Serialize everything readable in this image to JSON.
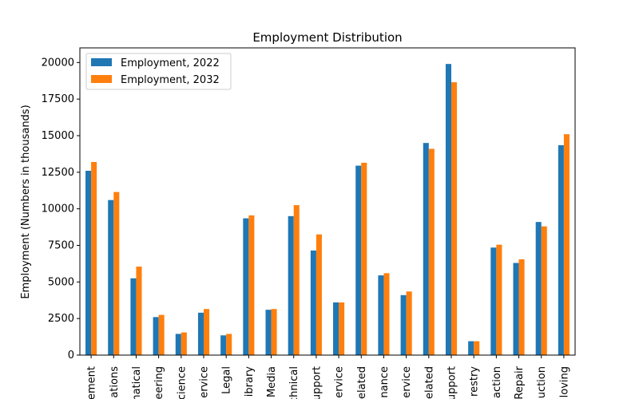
{
  "chart_data": {
    "type": "bar",
    "title": "Employment Distribution",
    "xlabel": "",
    "ylabel": "Employment (Numbers in thousands)",
    "ylim": [
      0,
      21000
    ],
    "yticks": [
      0,
      2500,
      5000,
      7500,
      10000,
      12500,
      15000,
      17500,
      20000
    ],
    "grid": false,
    "legend_position": "top-left",
    "categories": [
      "ement",
      "ations",
      "matical",
      "eering",
      "cience",
      "ervice",
      "Legal",
      "ibrary",
      "Media",
      "chnical",
      "upport",
      "ervice",
      "elated",
      "nance",
      "ervice",
      "elated",
      "upport",
      "restry",
      "action",
      "Repair",
      "uction",
      "loving"
    ],
    "series": [
      {
        "name": "Employment, 2022",
        "color": "#1f77b4",
        "values": [
          12600,
          10600,
          5250,
          2600,
          1450,
          2900,
          1350,
          9350,
          3100,
          9500,
          7150,
          3600,
          12950,
          5450,
          4100,
          14500,
          19900,
          950,
          7350,
          6300,
          9100,
          14350
        ]
      },
      {
        "name": "Employment, 2032",
        "color": "#ff7f0e",
        "values": [
          13200,
          11150,
          6050,
          2750,
          1550,
          3150,
          1450,
          9550,
          3150,
          10250,
          8250,
          3600,
          13150,
          5600,
          4350,
          14100,
          18650,
          950,
          7550,
          6550,
          8800,
          15100
        ]
      }
    ]
  }
}
